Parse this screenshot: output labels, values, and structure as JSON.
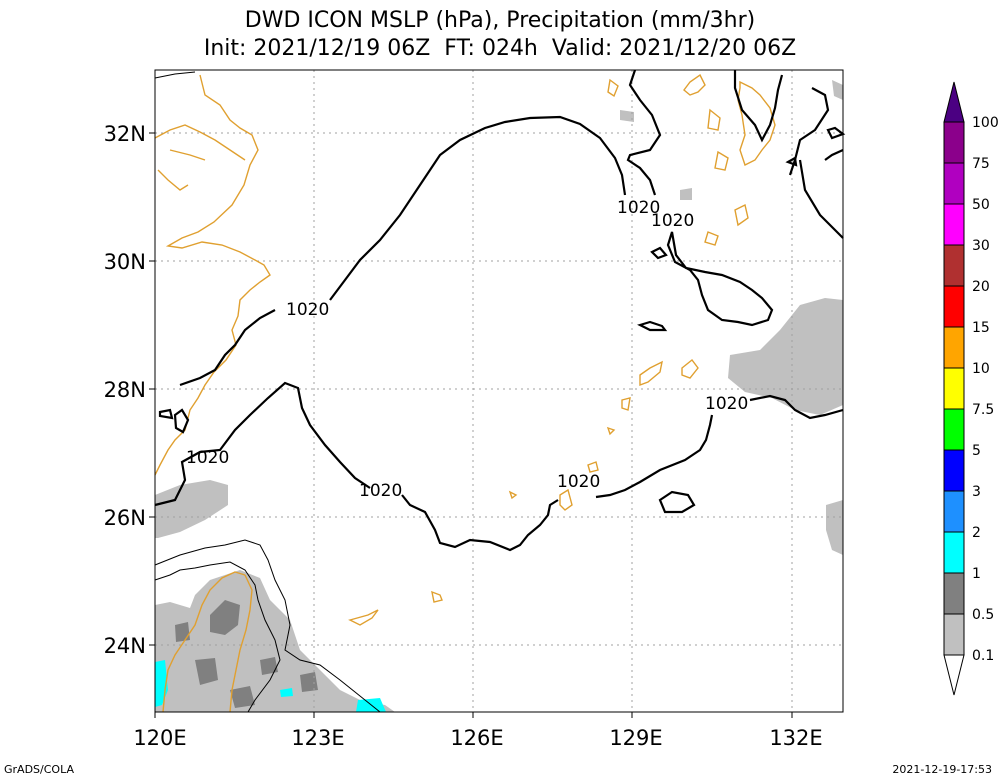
{
  "title": {
    "line1": "DWD ICON MSLP (hPa), Precipitation (mm/3hr)",
    "line2": "Init: 2021/12/19 06Z  FT: 024h  Valid: 2021/12/20 06Z"
  },
  "axes": {
    "x_ticks": [
      "120E",
      "123E",
      "126E",
      "129E",
      "132E"
    ],
    "y_ticks": [
      "32N",
      "30N",
      "28N",
      "26N",
      "24N"
    ]
  },
  "contour_label": "1020",
  "legend": {
    "levels": [
      "100",
      "75",
      "50",
      "30",
      "20",
      "15",
      "10",
      "7.5",
      "5",
      "3",
      "2",
      "1",
      "0.5",
      "0.1"
    ],
    "colors": [
      "#8b008b",
      "#b000c0",
      "#ff00ff",
      "#b03030",
      "#ff0000",
      "#ffa500",
      "#ffff00",
      "#00ff00",
      "#0000ff",
      "#1e90ff",
      "#00ffff",
      "#808080",
      "#c0c0c0"
    ],
    "top_color": "#4b0082"
  },
  "footer": {
    "left": "GrADS/COLA",
    "right": "2021-12-19-17:53"
  },
  "colors": {
    "coastline": "#e0a030",
    "isobar": "#000000",
    "grid": "#a0a0a0",
    "precip_light": "#c0c0c0",
    "precip_mid": "#808080",
    "precip_cyan": "#00ffff"
  }
}
